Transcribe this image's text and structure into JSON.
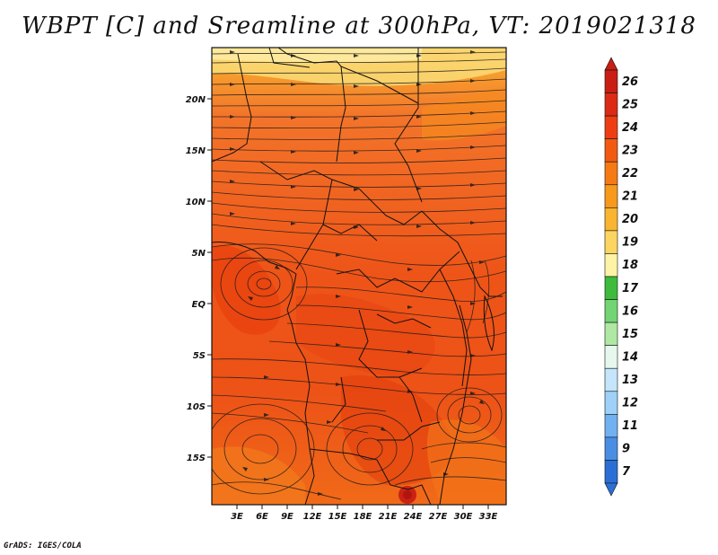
{
  "title": "WBPT [C] and Sreamline at 300hPa, VT: 2019021318",
  "credit": "GrADS: IGES/COLA",
  "lat_ticks": [
    "20N",
    "15N",
    "10N",
    "5N",
    "EQ",
    "5S",
    "10S",
    "15S"
  ],
  "lon_ticks": [
    "3E",
    "6E",
    "9E",
    "12E",
    "15E",
    "18E",
    "21E",
    "24E",
    "27E",
    "30E",
    "33E"
  ],
  "colorbar": {
    "labels": [
      "26",
      "25",
      "24",
      "23",
      "22",
      "21",
      "20",
      "19",
      "18",
      "17",
      "16",
      "15",
      "14",
      "13",
      "12",
      "11",
      "9",
      "7"
    ],
    "colors": [
      "#c81e14",
      "#dc2b15",
      "#ee3d12",
      "#f25a12",
      "#f57a14",
      "#f7991a",
      "#f9b530",
      "#fbd560",
      "#fdf3a6",
      "#3cbb3c",
      "#72d472",
      "#aee8a2",
      "#e6f7ee",
      "#c4e5fb",
      "#9fd0f7",
      "#72b1f0",
      "#4a8ee4",
      "#2b6fd6"
    ]
  }
}
